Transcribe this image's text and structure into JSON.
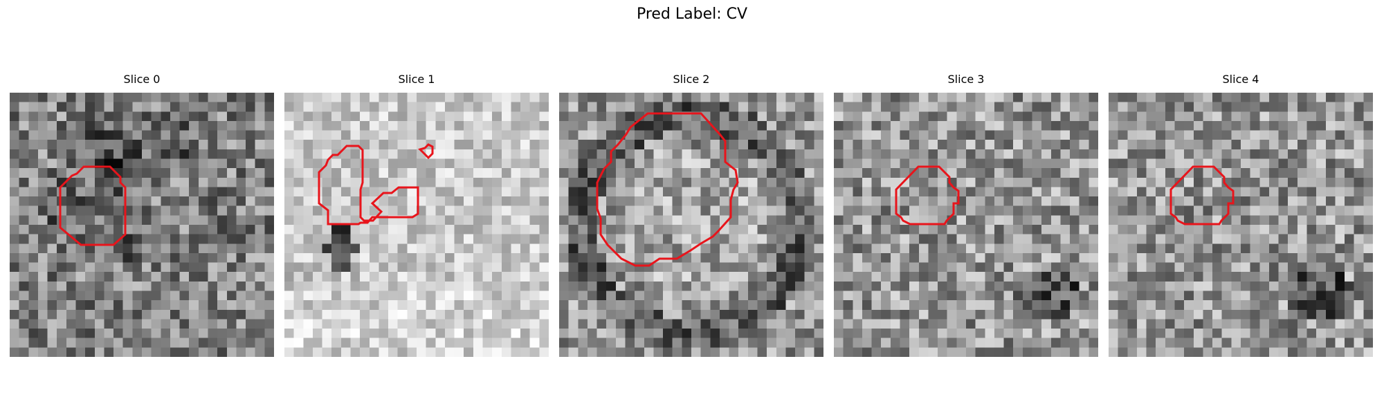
{
  "figure": {
    "title": "Pred Label: CV"
  },
  "panels": [
    {
      "title": "Slice 0",
      "seed": 11,
      "mean": 128,
      "spread": 70,
      "texture": "dark_blob"
    },
    {
      "title": "Slice 1",
      "seed": 23,
      "mean": 200,
      "spread": 45,
      "texture": "light"
    },
    {
      "title": "Slice 2",
      "seed": 37,
      "mean": 150,
      "spread": 65,
      "texture": "ring"
    },
    {
      "title": "Slice 3",
      "seed": 41,
      "mean": 150,
      "spread": 70,
      "texture": "noise"
    },
    {
      "title": "Slice 4",
      "seed": 53,
      "mean": 150,
      "spread": 70,
      "texture": "noise"
    }
  ],
  "contour": {
    "color": "#e8141b"
  }
}
